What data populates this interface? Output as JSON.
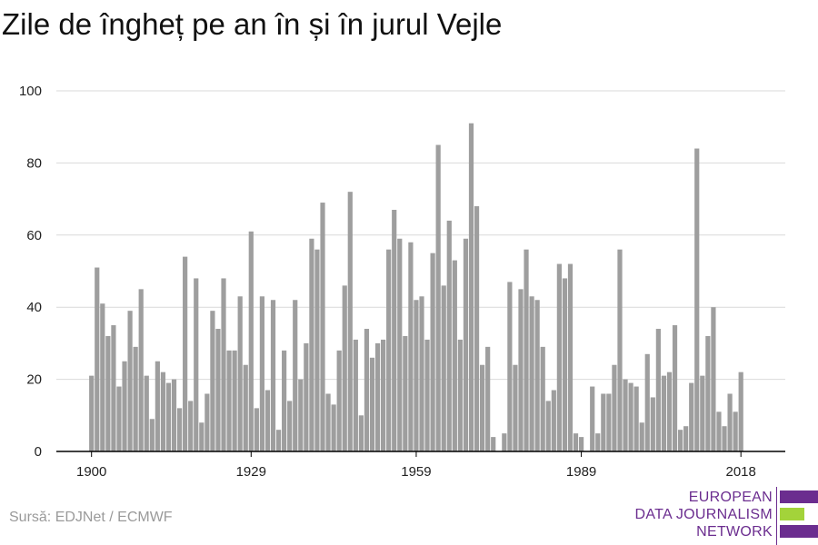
{
  "title": "Zile de îngheț pe an în și în jurul Vejle",
  "source": "Sursă: EDJNet / ECMWF",
  "logo": {
    "lines": [
      "EUROPEAN",
      "DATA JOURNALISM",
      "NETWORK"
    ],
    "colors": [
      "#6b2d8f",
      "#a3d33a",
      "#6b2d8f"
    ]
  },
  "colors": {
    "bar": "#9e9e9e",
    "grid": "#d9d9d9",
    "axis": "#000000"
  },
  "chart_data": {
    "type": "bar",
    "title": "Zile de îngheț pe an în și în jurul Vejle",
    "xlabel": "",
    "ylabel": "",
    "ylim": [
      0,
      100
    ],
    "yticks": [
      0,
      20,
      40,
      60,
      80,
      100
    ],
    "xticks": [
      1900,
      1929,
      1959,
      1989,
      2018
    ],
    "xlim": [
      1900,
      2021
    ],
    "grid": true,
    "series": [
      {
        "years": [
          1900,
          1901,
          1902,
          1903,
          1904,
          1905,
          1906,
          1907,
          1908,
          1909,
          1910,
          1911,
          1912,
          1913,
          1914,
          1915,
          1916,
          1917,
          1918,
          1919,
          1920,
          1921,
          1922,
          1923,
          1924,
          1925,
          1926,
          1927,
          1928,
          1929,
          1930,
          1931,
          1932,
          1933,
          1934,
          1935,
          1936,
          1937,
          1938,
          1939,
          1940,
          1941,
          1942,
          1943,
          1944,
          1945,
          1946,
          1947,
          1948,
          1949,
          1950,
          1951,
          1952,
          1953,
          1954,
          1955,
          1956,
          1957,
          1958,
          1959,
          1960,
          1961,
          1962,
          1963,
          1964,
          1965,
          1966,
          1967,
          1968,
          1969,
          1970,
          1971,
          1972,
          1973,
          1974,
          1975,
          1976,
          1977,
          1978,
          1979,
          1980,
          1981,
          1982,
          1983,
          1984,
          1985,
          1986,
          1987,
          1988,
          1989,
          1990,
          1991,
          1992,
          1993,
          1994,
          1995,
          1996,
          1997,
          1998,
          1999,
          2000,
          2001,
          2002,
          2003,
          2004,
          2005,
          2006,
          2007,
          2008,
          2009,
          2010,
          2011,
          2012,
          2013,
          2014,
          2015,
          2016,
          2017,
          2018
        ],
        "values": [
          21,
          51,
          41,
          32,
          35,
          18,
          25,
          39,
          29,
          45,
          21,
          9,
          25,
          22,
          19,
          20,
          12,
          54,
          14,
          48,
          8,
          16,
          39,
          34,
          48,
          28,
          28,
          43,
          24,
          61,
          12,
          43,
          17,
          42,
          6,
          28,
          14,
          42,
          20,
          30,
          59,
          56,
          69,
          16,
          13,
          28,
          46,
          72,
          31,
          10,
          34,
          26,
          30,
          31,
          56,
          67,
          59,
          32,
          58,
          42,
          43,
          31,
          55,
          85,
          46,
          64,
          53,
          31,
          59,
          91,
          68,
          24,
          29,
          4,
          0,
          5,
          47,
          24,
          45,
          56,
          43,
          42,
          29,
          14,
          17,
          52,
          48,
          52,
          5,
          4,
          0,
          18,
          5,
          16,
          16,
          24,
          56,
          20,
          19,
          18,
          8,
          27,
          15,
          34,
          21,
          22,
          35,
          6,
          7,
          19,
          84,
          21,
          32,
          40,
          11,
          7,
          16,
          11,
          22
        ]
      }
    ]
  }
}
